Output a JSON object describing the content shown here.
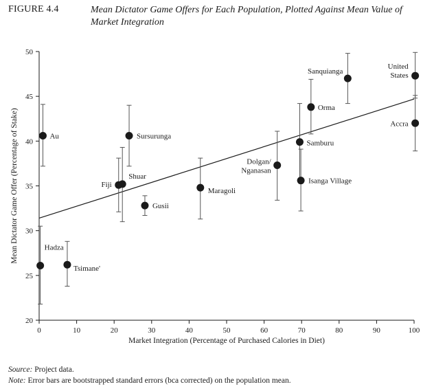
{
  "figure": {
    "label": "FIGURE 4.4",
    "title": "Mean Dictator Game Offers for Each Population, Plotted Against Mean Value of Market Integration"
  },
  "chart_data": {
    "type": "scatter",
    "xlabel": "Market Integration (Percentage of Purchased Calories in Diet)",
    "ylabel": "Mean Dictator Game  Offer  (Percentage of Stake)",
    "xlim": [
      0,
      100
    ],
    "ylim": [
      20,
      50
    ],
    "xticks": [
      "0",
      "10",
      "20",
      "30",
      "40",
      "50",
      "60",
      "70",
      "80",
      "90",
      "100"
    ],
    "yticks": [
      "20",
      "25",
      "30",
      "35",
      "40",
      "45",
      "50"
    ],
    "grid": false,
    "trendline": {
      "x1": 0,
      "y1": 31.4,
      "x2": 100,
      "y2": 44.7
    },
    "points": [
      {
        "name": "Au",
        "x": 1,
        "y": 40.6,
        "lo": 37.2,
        "hi": 44.1
      },
      {
        "name": "Hadza",
        "x": 0.3,
        "y": 26.1,
        "lo": 21.8,
        "hi": 30.5
      },
      {
        "name": "Tsimane'",
        "x": 7.5,
        "y": 26.2,
        "lo": 23.8,
        "hi": 28.8
      },
      {
        "name": "Fiji",
        "x": 21.2,
        "y": 35.1,
        "lo": 32.1,
        "hi": 38.1
      },
      {
        "name": "Shuar",
        "x": 22.2,
        "y": 35.2,
        "lo": 31.0,
        "hi": 39.3
      },
      {
        "name": "Sursurunga",
        "x": 24,
        "y": 40.6,
        "lo": 37.2,
        "hi": 44.0
      },
      {
        "name": "Gusii",
        "x": 28.2,
        "y": 32.8,
        "lo": 31.7,
        "hi": 33.9
      },
      {
        "name": "Maragoli",
        "x": 43,
        "y": 34.8,
        "lo": 31.3,
        "hi": 38.1
      },
      {
        "name": "Dolgan/ Nganasan",
        "x": 63.5,
        "y": 37.3,
        "lo": 33.4,
        "hi": 41.1
      },
      {
        "name": "Samburu",
        "x": 69.5,
        "y": 39.9,
        "lo": 35.6,
        "hi": 44.2
      },
      {
        "name": "Isanga Village",
        "x": 69.8,
        "y": 35.6,
        "lo": 32.2,
        "hi": 39.1
      },
      {
        "name": "Orma",
        "x": 72.5,
        "y": 43.8,
        "lo": 40.8,
        "hi": 46.9
      },
      {
        "name": "Sanquianga",
        "x": 82.3,
        "y": 47.0,
        "lo": 44.2,
        "hi": 49.8
      },
      {
        "name": "United States",
        "x": 100.3,
        "y": 47.3,
        "lo": 44.8,
        "hi": 49.9
      },
      {
        "name": "Accra",
        "x": 100.3,
        "y": 42.0,
        "lo": 38.9,
        "hi": 45.1
      }
    ]
  },
  "footer": {
    "source_lead": "Source:",
    "source_text": " Project data.",
    "note_lead": "Note:",
    "note_text": " Error bars are bootstrapped standard errors (bca corrected) on the population mean."
  }
}
